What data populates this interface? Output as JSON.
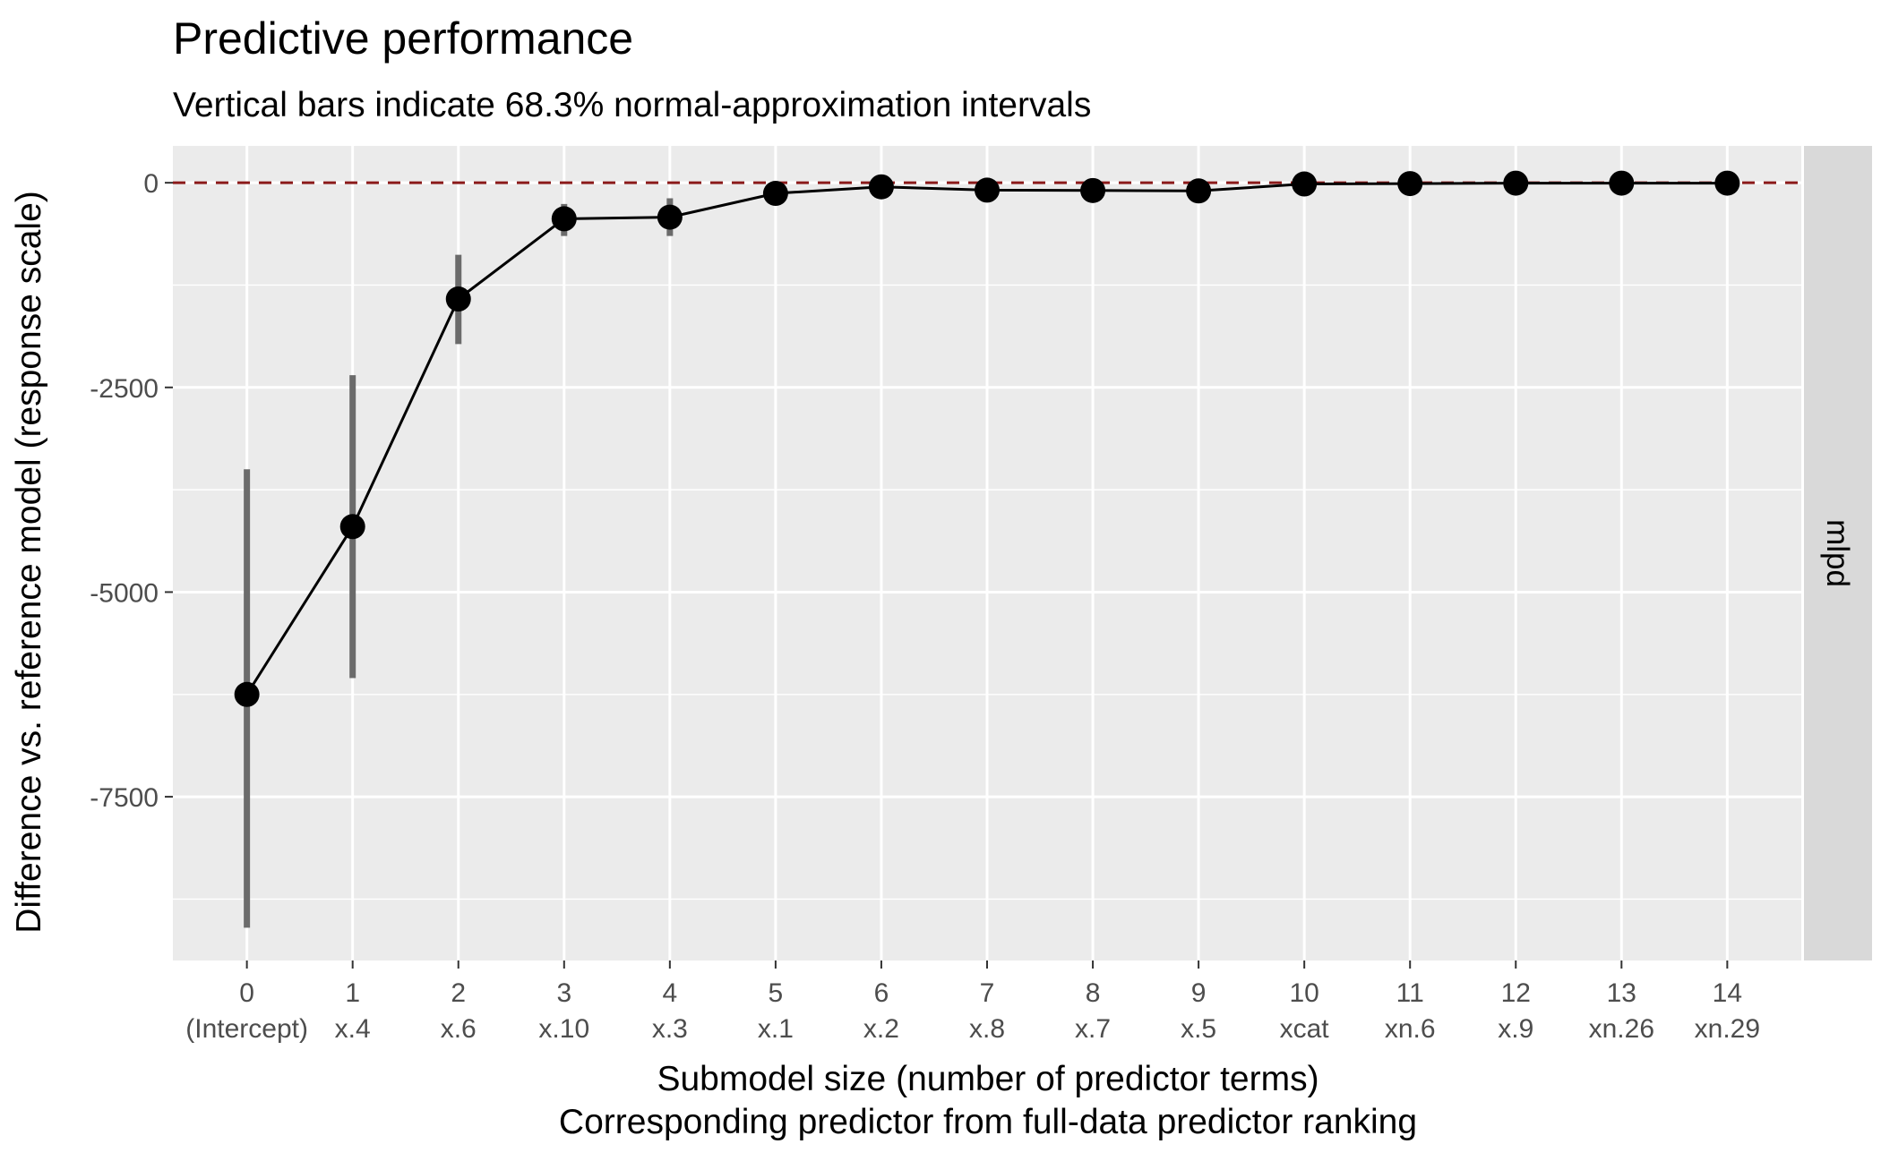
{
  "chart_data": {
    "type": "line",
    "title": "Predictive performance",
    "subtitle": "Vertical bars indicate 68.3% normal-approximation intervals",
    "xlabel": "Submodel size (number of predictor terms)",
    "xlabel2": "Corresponding predictor from full-data predictor ranking",
    "ylabel": "Difference vs. reference model (response scale)",
    "facet_label": "mlpd",
    "x": [
      0,
      1,
      2,
      3,
      4,
      5,
      6,
      7,
      8,
      9,
      10,
      11,
      12,
      13,
      14
    ],
    "x_tick_labels": [
      "0",
      "1",
      "2",
      "3",
      "4",
      "5",
      "6",
      "7",
      "8",
      "9",
      "10",
      "11",
      "12",
      "13",
      "14"
    ],
    "x_tick_sublabels": [
      "(Intercept)",
      "x.4",
      "x.6",
      "x.10",
      "x.3",
      "x.1",
      "x.2",
      "x.8",
      "x.7",
      "x.5",
      "xcat",
      "xn.6",
      "x.9",
      "xn.26",
      "xn.29"
    ],
    "y": [
      -6250,
      -4200,
      -1420,
      -440,
      -420,
      -130,
      -50,
      -90,
      -95,
      -100,
      -15,
      -10,
      -5,
      -5,
      -5
    ],
    "y_lower": [
      -9100,
      -6050,
      -1970,
      -650,
      -650,
      -200,
      -90,
      -130,
      -130,
      -140,
      -40,
      -35,
      -25,
      -25,
      -25
    ],
    "y_upper": [
      -3500,
      -2350,
      -880,
      -260,
      -190,
      -60,
      -10,
      -50,
      -55,
      -60,
      10,
      10,
      10,
      10,
      10
    ],
    "y_ticks": [
      0,
      -2500,
      -5000,
      -7500
    ],
    "y_tick_labels": [
      "0",
      "-2500",
      "-5000",
      "-7500"
    ],
    "ylim": [
      -9500,
      450
    ],
    "xlim": [
      -0.7,
      14.7
    ],
    "reference_line_y": 0,
    "grid": true,
    "colors": {
      "panel_bg": "#ebebeb",
      "strip_bg": "#d9d9d9",
      "gridline": "#ffffff",
      "line": "#000000",
      "point": "#000000",
      "errorbar": "#6b6b6b",
      "reference_line": "#8b1a1a"
    }
  }
}
